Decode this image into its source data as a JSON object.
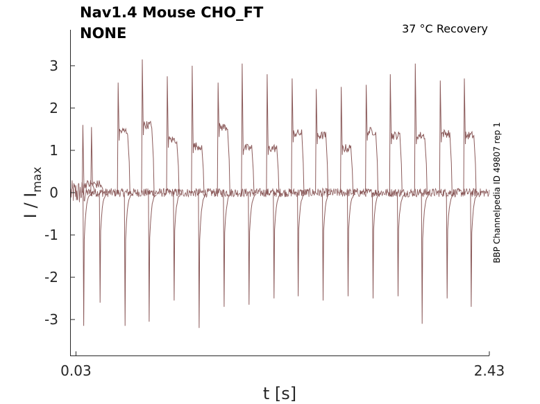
{
  "chart_data": {
    "type": "line",
    "title_line1": "Nav1.4  Mouse  CHO_FT",
    "title_line2": "NONE",
    "condition": "37 °C  Recovery",
    "side_label": "BBP Channelpedia ID 49807 rep 1",
    "xlabel": "t [s]",
    "ylabel_main": "I / I",
    "ylabel_sub": "max",
    "xticks": [
      "0.03",
      "2.43"
    ],
    "xtick_values": [
      0.03,
      2.43
    ],
    "yticks": [
      "3",
      "2",
      "1",
      "0",
      "-1",
      "-2",
      "-3"
    ],
    "ytick_values": [
      3,
      2,
      1,
      0,
      -1,
      -2,
      -3
    ],
    "xlim": [
      0.0,
      2.43
    ],
    "ylim": [
      -3.85,
      3.85
    ],
    "grid": false,
    "line_color": "#8b5a5a",
    "series": [
      {
        "kind": "upper-recovery-pulses",
        "pulse_times_s": [
          0.07,
          0.12,
          0.275,
          0.415,
          0.56,
          0.705,
          0.855,
          0.995,
          1.14,
          1.285,
          1.425,
          1.57,
          1.715,
          1.855,
          2.0,
          2.145,
          2.285
        ],
        "peak_values": [
          1.6,
          1.55,
          2.6,
          3.15,
          2.75,
          3.0,
          2.6,
          3.05,
          2.8,
          2.7,
          2.45,
          2.5,
          2.55,
          2.8,
          3.05,
          2.65,
          2.7
        ],
        "plateau_values": [
          0.2,
          0.2,
          1.45,
          1.6,
          1.25,
          1.1,
          1.55,
          1.05,
          1.05,
          1.4,
          1.35,
          1.05,
          1.45,
          1.35,
          1.35,
          1.4,
          1.35
        ]
      },
      {
        "kind": "lower-recovery-pulses",
        "pulse_times_s": [
          0.075,
          0.17,
          0.315,
          0.455,
          0.6,
          0.745,
          0.89,
          1.035,
          1.18,
          1.32,
          1.465,
          1.61,
          1.755,
          1.9,
          2.04,
          2.185,
          2.325
        ],
        "trough_values": [
          -3.15,
          -2.6,
          -3.15,
          -3.05,
          -2.55,
          -3.2,
          -2.7,
          -2.65,
          -2.5,
          -2.45,
          -2.55,
          -2.45,
          -2.5,
          -2.45,
          -3.1,
          -2.5,
          -2.7
        ]
      }
    ]
  }
}
